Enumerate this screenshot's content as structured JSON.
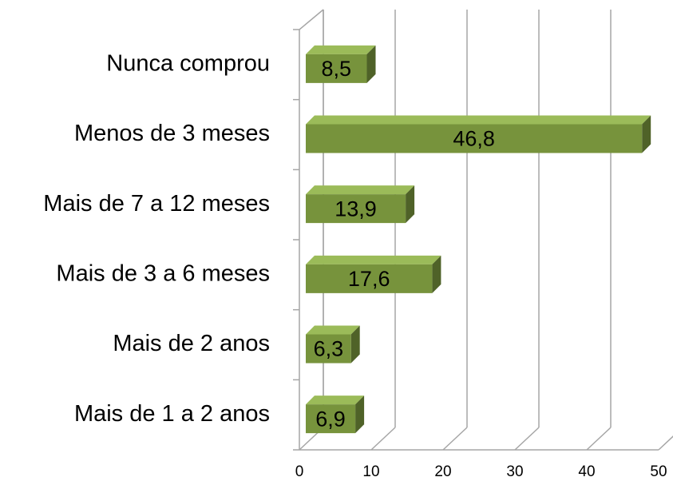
{
  "chart_data": {
    "type": "bar",
    "orientation": "horizontal",
    "categories": [
      "Nunca comprou",
      "Menos de 3 meses",
      "Mais de 7 a 12 meses",
      "Mais de 3 a 6 meses",
      "Mais de 2 anos",
      "Mais de 1 a 2 anos"
    ],
    "values": [
      8.5,
      46.8,
      13.9,
      17.6,
      6.3,
      6.9
    ],
    "value_labels": [
      "8,5",
      "46,8",
      "13,9",
      "17,6",
      "6,3",
      "6,9"
    ],
    "color": "#77933c",
    "xlim": [
      0,
      50
    ],
    "xticks": [
      0,
      10,
      20,
      30,
      40,
      50
    ],
    "grid": true
  }
}
